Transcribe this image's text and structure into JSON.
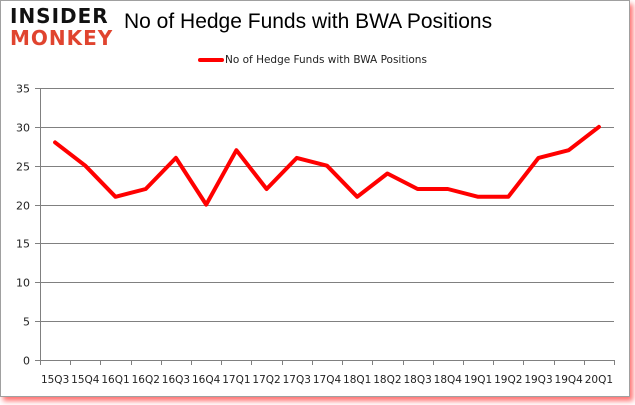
{
  "header": {
    "logo_line1": "INSIDER",
    "logo_line2": "MONKEY",
    "title": "No of Hedge Funds with BWA Positions"
  },
  "legend": {
    "label": "No of Hedge Funds with BWA Positions",
    "color": "#ff0000"
  },
  "colors": {
    "line": "#ff0000",
    "grid": "#808080",
    "logo_accent": "#e0442f",
    "frame_shadow": "#ff0000"
  },
  "chart_data": {
    "type": "line",
    "title": "No of Hedge Funds with BWA Positions",
    "xlabel": "",
    "ylabel": "",
    "ylim": [
      0,
      35
    ],
    "yticks": [
      0,
      5,
      10,
      15,
      20,
      25,
      30,
      35
    ],
    "grid": true,
    "legend_position": "top",
    "categories": [
      "15Q3",
      "15Q4",
      "16Q1",
      "16Q2",
      "16Q3",
      "16Q4",
      "17Q1",
      "17Q2",
      "17Q3",
      "17Q4",
      "18Q1",
      "18Q2",
      "18Q3",
      "18Q4",
      "19Q1",
      "19Q2",
      "19Q3",
      "19Q4",
      "20Q1"
    ],
    "series": [
      {
        "name": "No of Hedge Funds with BWA Positions",
        "values": [
          28,
          25,
          21,
          22,
          26,
          20,
          27,
          22,
          26,
          25,
          21,
          24,
          22,
          22,
          21,
          21,
          26,
          27,
          30
        ]
      }
    ]
  }
}
